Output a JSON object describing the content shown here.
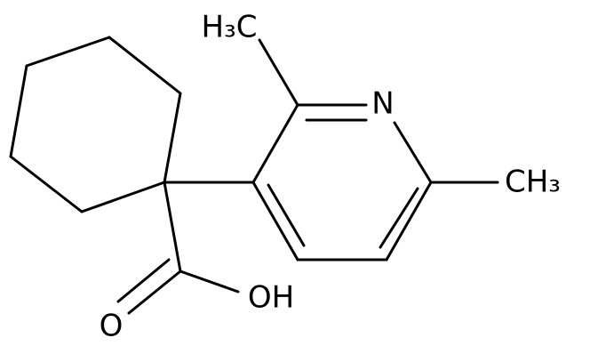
{
  "atoms": [
    {
      "label": "H₃C"
    },
    {
      "label": "N"
    },
    {
      "label": "CH₃"
    },
    {
      "label": "OH"
    },
    {
      "label": "O"
    }
  ]
}
